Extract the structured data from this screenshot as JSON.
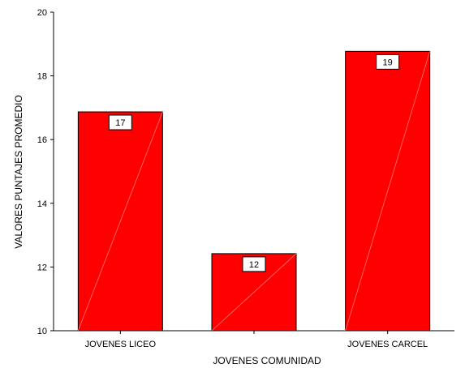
{
  "chart_data": {
    "type": "bar",
    "categories": [
      "JOVENES LICEO",
      "",
      "JOVENES CARCEL"
    ],
    "values": [
      16.87,
      12.42,
      18.77
    ],
    "data_labels": [
      "17",
      "12",
      "19"
    ],
    "xlabel": "JOVENES COMUNIDAD",
    "ylabel": "VALORES PUNTAJES PROMEDIO",
    "ylim": [
      10,
      20
    ],
    "yticks": [
      10,
      12,
      14,
      16,
      18,
      20
    ],
    "grid": false,
    "bar_color": "#ff0000",
    "bar_stroke": "#000000"
  }
}
